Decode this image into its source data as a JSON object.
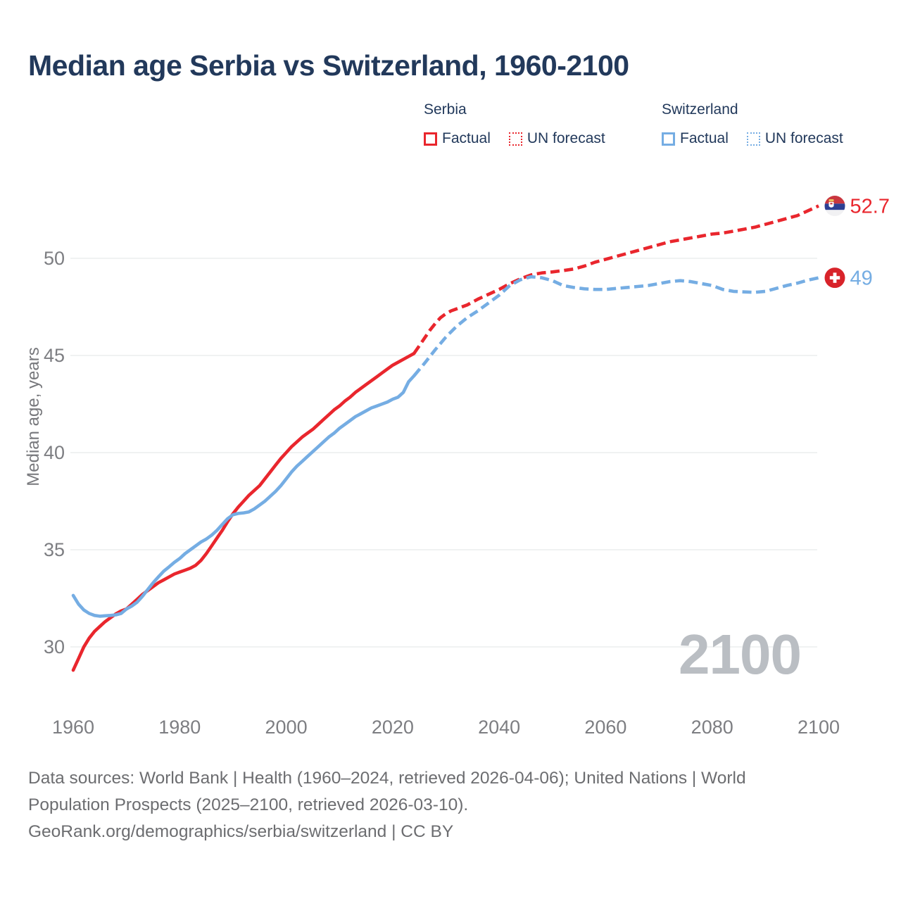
{
  "title": "Median age Serbia vs Switzerland, 1960-2100",
  "colors": {
    "serbia_line": "#e9262d",
    "switzerland_line": "#75ade3",
    "navy_text": "#22395b",
    "axis_text": "#7d7e82",
    "gridline": "#e8e9eb",
    "footer_text": "#6c6d70",
    "watermark": "#babec3",
    "swiss_flag_red": "#d8232a",
    "serbia_flag_red": "#c9363f",
    "serbia_flag_blue": "#2d3f93"
  },
  "legend": {
    "groups": [
      {
        "name": "Serbia",
        "items": [
          {
            "label": "Factual",
            "style": "solid"
          },
          {
            "label": "UN forecast",
            "style": "dotted"
          }
        ]
      },
      {
        "name": "Switzerland",
        "items": [
          {
            "label": "Factual",
            "style": "solid"
          },
          {
            "label": "UN forecast",
            "style": "dotted"
          }
        ]
      }
    ]
  },
  "chart_data": {
    "type": "line",
    "title": "Median age Serbia vs Switzerland, 1960-2100",
    "xlabel": "",
    "ylabel": "Median age, years",
    "xlim": [
      1960,
      2100
    ],
    "ylim": [
      28.5,
      53
    ],
    "grid": "horizontal",
    "x_ticks": [
      1960,
      1980,
      2000,
      2020,
      2040,
      2060,
      2080,
      2100
    ],
    "y_ticks": [
      30,
      35,
      40,
      45,
      50
    ],
    "watermark": "2100",
    "series": [
      {
        "name": "Serbia factual",
        "color": "#e9262d",
        "dash": false,
        "points": [
          [
            1960,
            28.8
          ],
          [
            1961,
            29.4
          ],
          [
            1962,
            30.0
          ],
          [
            1963,
            30.45
          ],
          [
            1964,
            30.8
          ],
          [
            1965,
            31.05
          ],
          [
            1966,
            31.3
          ],
          [
            1967,
            31.5
          ],
          [
            1968,
            31.7
          ],
          [
            1969,
            31.85
          ],
          [
            1970,
            31.95
          ],
          [
            1971,
            32.2
          ],
          [
            1972,
            32.45
          ],
          [
            1973,
            32.7
          ],
          [
            1974,
            32.9
          ],
          [
            1975,
            33.1
          ],
          [
            1976,
            33.3
          ],
          [
            1977,
            33.45
          ],
          [
            1978,
            33.6
          ],
          [
            1979,
            33.75
          ],
          [
            1980,
            33.85
          ],
          [
            1981,
            33.95
          ],
          [
            1982,
            34.05
          ],
          [
            1983,
            34.2
          ],
          [
            1984,
            34.45
          ],
          [
            1985,
            34.8
          ],
          [
            1986,
            35.2
          ],
          [
            1987,
            35.6
          ],
          [
            1988,
            36.0
          ],
          [
            1989,
            36.45
          ],
          [
            1990,
            36.85
          ],
          [
            1991,
            37.2
          ],
          [
            1992,
            37.5
          ],
          [
            1993,
            37.8
          ],
          [
            1994,
            38.05
          ],
          [
            1995,
            38.3
          ],
          [
            1996,
            38.65
          ],
          [
            1997,
            39.0
          ],
          [
            1998,
            39.35
          ],
          [
            1999,
            39.7
          ],
          [
            2000,
            40.0
          ],
          [
            2001,
            40.3
          ],
          [
            2002,
            40.55
          ],
          [
            2003,
            40.8
          ],
          [
            2004,
            41.0
          ],
          [
            2005,
            41.2
          ],
          [
            2006,
            41.45
          ],
          [
            2007,
            41.7
          ],
          [
            2008,
            41.95
          ],
          [
            2009,
            42.2
          ],
          [
            2010,
            42.4
          ],
          [
            2011,
            42.65
          ],
          [
            2012,
            42.85
          ],
          [
            2013,
            43.1
          ],
          [
            2014,
            43.3
          ],
          [
            2015,
            43.5
          ],
          [
            2016,
            43.7
          ],
          [
            2017,
            43.9
          ],
          [
            2018,
            44.1
          ],
          [
            2019,
            44.3
          ],
          [
            2020,
            44.5
          ],
          [
            2021,
            44.65
          ],
          [
            2022,
            44.8
          ],
          [
            2023,
            44.95
          ],
          [
            2024,
            45.1
          ]
        ]
      },
      {
        "name": "Serbia UN forecast",
        "color": "#e9262d",
        "dash": true,
        "points": [
          [
            2024,
            45.1
          ],
          [
            2025,
            45.5
          ],
          [
            2026,
            45.9
          ],
          [
            2027,
            46.3
          ],
          [
            2028,
            46.65
          ],
          [
            2029,
            46.95
          ],
          [
            2030,
            47.15
          ],
          [
            2031,
            47.3
          ],
          [
            2032,
            47.4
          ],
          [
            2034,
            47.6
          ],
          [
            2036,
            47.9
          ],
          [
            2038,
            48.15
          ],
          [
            2040,
            48.4
          ],
          [
            2042,
            48.7
          ],
          [
            2044,
            48.95
          ],
          [
            2046,
            49.15
          ],
          [
            2048,
            49.25
          ],
          [
            2050,
            49.3
          ],
          [
            2052,
            49.37
          ],
          [
            2054,
            49.45
          ],
          [
            2056,
            49.6
          ],
          [
            2058,
            49.8
          ],
          [
            2060,
            49.95
          ],
          [
            2062,
            50.1
          ],
          [
            2064,
            50.25
          ],
          [
            2066,
            50.4
          ],
          [
            2068,
            50.55
          ],
          [
            2070,
            50.7
          ],
          [
            2072,
            50.85
          ],
          [
            2074,
            50.95
          ],
          [
            2076,
            51.05
          ],
          [
            2078,
            51.15
          ],
          [
            2080,
            51.25
          ],
          [
            2082,
            51.3
          ],
          [
            2084,
            51.4
          ],
          [
            2086,
            51.5
          ],
          [
            2088,
            51.6
          ],
          [
            2090,
            51.75
          ],
          [
            2092,
            51.9
          ],
          [
            2094,
            52.05
          ],
          [
            2096,
            52.2
          ],
          [
            2098,
            52.45
          ],
          [
            2100,
            52.7
          ]
        ]
      },
      {
        "name": "Switzerland factual",
        "color": "#75ade3",
        "dash": false,
        "points": [
          [
            1960,
            32.65
          ],
          [
            1961,
            32.2
          ],
          [
            1962,
            31.9
          ],
          [
            1963,
            31.72
          ],
          [
            1964,
            31.62
          ],
          [
            1965,
            31.58
          ],
          [
            1966,
            31.6
          ],
          [
            1967,
            31.62
          ],
          [
            1968,
            31.65
          ],
          [
            1969,
            31.72
          ],
          [
            1970,
            31.95
          ],
          [
            1971,
            32.1
          ],
          [
            1972,
            32.3
          ],
          [
            1973,
            32.6
          ],
          [
            1974,
            32.95
          ],
          [
            1975,
            33.3
          ],
          [
            1976,
            33.6
          ],
          [
            1977,
            33.9
          ],
          [
            1978,
            34.12
          ],
          [
            1979,
            34.35
          ],
          [
            1980,
            34.55
          ],
          [
            1981,
            34.8
          ],
          [
            1982,
            35.0
          ],
          [
            1983,
            35.2
          ],
          [
            1984,
            35.4
          ],
          [
            1985,
            35.55
          ],
          [
            1986,
            35.75
          ],
          [
            1987,
            36.0
          ],
          [
            1988,
            36.3
          ],
          [
            1989,
            36.6
          ],
          [
            1990,
            36.8
          ],
          [
            1991,
            36.87
          ],
          [
            1992,
            36.9
          ],
          [
            1993,
            36.95
          ],
          [
            1994,
            37.1
          ],
          [
            1995,
            37.3
          ],
          [
            1996,
            37.5
          ],
          [
            1997,
            37.75
          ],
          [
            1998,
            38.0
          ],
          [
            1999,
            38.3
          ],
          [
            2000,
            38.65
          ],
          [
            2001,
            39.0
          ],
          [
            2002,
            39.3
          ],
          [
            2003,
            39.55
          ],
          [
            2004,
            39.8
          ],
          [
            2005,
            40.05
          ],
          [
            2006,
            40.3
          ],
          [
            2007,
            40.55
          ],
          [
            2008,
            40.8
          ],
          [
            2009,
            41.0
          ],
          [
            2010,
            41.25
          ],
          [
            2011,
            41.45
          ],
          [
            2012,
            41.65
          ],
          [
            2013,
            41.85
          ],
          [
            2014,
            42.0
          ],
          [
            2015,
            42.15
          ],
          [
            2016,
            42.3
          ],
          [
            2017,
            42.4
          ],
          [
            2018,
            42.5
          ],
          [
            2019,
            42.6
          ],
          [
            2020,
            42.75
          ],
          [
            2021,
            42.85
          ],
          [
            2022,
            43.1
          ],
          [
            2023,
            43.65
          ],
          [
            2024,
            43.95
          ]
        ]
      },
      {
        "name": "Switzerland UN forecast",
        "color": "#75ade3",
        "dash": true,
        "points": [
          [
            2024,
            43.95
          ],
          [
            2026,
            44.6
          ],
          [
            2028,
            45.3
          ],
          [
            2030,
            45.95
          ],
          [
            2032,
            46.5
          ],
          [
            2034,
            46.95
          ],
          [
            2036,
            47.3
          ],
          [
            2038,
            47.7
          ],
          [
            2040,
            48.1
          ],
          [
            2042,
            48.6
          ],
          [
            2044,
            48.9
          ],
          [
            2046,
            49.05
          ],
          [
            2048,
            49.0
          ],
          [
            2050,
            48.85
          ],
          [
            2052,
            48.6
          ],
          [
            2054,
            48.5
          ],
          [
            2056,
            48.43
          ],
          [
            2058,
            48.4
          ],
          [
            2060,
            48.4
          ],
          [
            2062,
            48.45
          ],
          [
            2064,
            48.5
          ],
          [
            2066,
            48.55
          ],
          [
            2068,
            48.6
          ],
          [
            2070,
            48.7
          ],
          [
            2072,
            48.8
          ],
          [
            2074,
            48.85
          ],
          [
            2076,
            48.8
          ],
          [
            2078,
            48.7
          ],
          [
            2080,
            48.6
          ],
          [
            2082,
            48.4
          ],
          [
            2084,
            48.3
          ],
          [
            2086,
            48.27
          ],
          [
            2088,
            48.25
          ],
          [
            2090,
            48.3
          ],
          [
            2092,
            48.45
          ],
          [
            2094,
            48.6
          ],
          [
            2096,
            48.72
          ],
          [
            2098,
            48.88
          ],
          [
            2100,
            49.0
          ]
        ]
      }
    ],
    "end_labels": [
      {
        "text": "52.7",
        "value": 52.7,
        "flag": "serbia",
        "color": "#e9262d"
      },
      {
        "text": "49",
        "value": 49,
        "flag": "switzerland",
        "color": "#75ade3"
      }
    ]
  },
  "footer": {
    "lines": [
      "Data sources: World Bank | Health (1960–2024, retrieved 2026-04-06); United Nations | World",
      "Population Prospects (2025–2100, retrieved 2026-03-10).",
      "GeoRank.org/demographics/serbia/switzerland | CC BY"
    ]
  }
}
